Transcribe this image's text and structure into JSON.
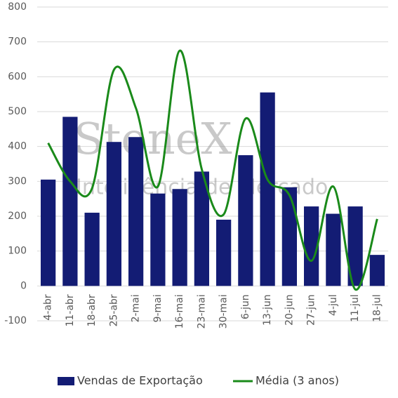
{
  "chart_data": {
    "type": "combo",
    "categories": [
      "4-abr",
      "11-abr",
      "18-abr",
      "25-abr",
      "2-mai",
      "9-mai",
      "16-mai",
      "23-mai",
      "30-mai",
      "6-jun",
      "13-jun",
      "20-jun",
      "27-jun",
      "4-jul",
      "11-jul",
      "18-jul"
    ],
    "series": [
      {
        "name": "Vendas de Exportação",
        "type": "bar",
        "color": "#131c74",
        "values": [
          305,
          485,
          210,
          413,
          427,
          265,
          278,
          328,
          190,
          375,
          555,
          283,
          228,
          207,
          228,
          89
        ]
      },
      {
        "name": "Média (3 anos)",
        "type": "line",
        "color": "#1a8a1a",
        "values": [
          410,
          300,
          280,
          620,
          510,
          285,
          675,
          335,
          205,
          480,
          305,
          260,
          72,
          285,
          -10,
          192
        ]
      }
    ],
    "ylim": [
      -100,
      800
    ],
    "yticks": [
      -100,
      0,
      100,
      200,
      300,
      400,
      500,
      600,
      700,
      800
    ],
    "grid": true,
    "legend": "bottom",
    "watermark": {
      "title": "StoneX",
      "subtitle": "Inteligência de Mercado"
    }
  }
}
